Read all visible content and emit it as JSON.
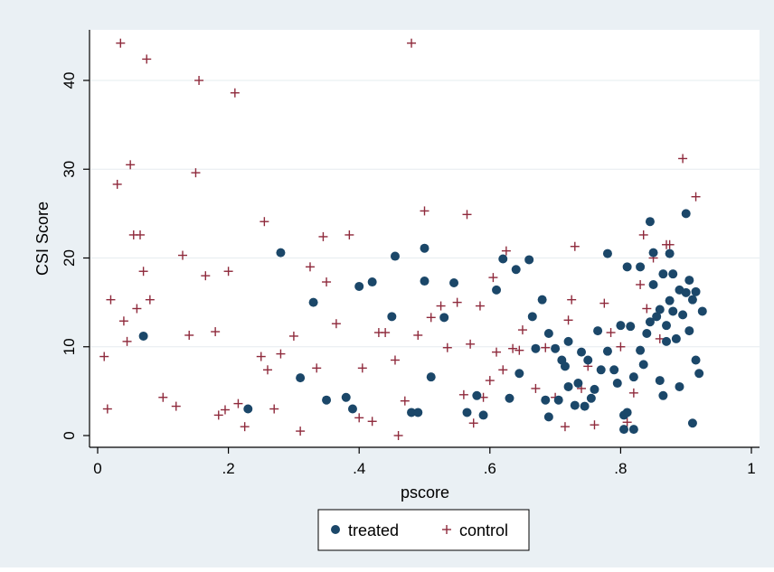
{
  "chart_data": {
    "type": "scatter",
    "xlabel": "pscore",
    "ylabel": "CSI Score",
    "xlim": [
      0,
      1
    ],
    "ylim": [
      0,
      45
    ],
    "x_ticks": [
      0,
      0.2,
      0.4,
      0.6,
      0.8,
      1
    ],
    "x_tick_labels": [
      "0",
      ".2",
      ".4",
      ".6",
      ".8",
      "1"
    ],
    "y_ticks": [
      0,
      10,
      20,
      30,
      40
    ],
    "y_tick_labels": [
      "0",
      "10",
      "20",
      "30",
      "40"
    ],
    "grid": "horizontal",
    "legend_position": "bottom-center",
    "colors": {
      "outer_background": "#eaf0f4",
      "plot_background": "#ffffff",
      "treated": "#1b4769",
      "control": "#8f2a3c",
      "gridline": "#e6ecef",
      "axis": "#000000"
    },
    "series": [
      {
        "name": "treated",
        "marker": "filled-circle",
        "points": [
          [
            0.07,
            11.2
          ],
          [
            0.23,
            3
          ],
          [
            0.28,
            20.6
          ],
          [
            0.31,
            6.5
          ],
          [
            0.33,
            15
          ],
          [
            0.35,
            4
          ],
          [
            0.38,
            4.3
          ],
          [
            0.39,
            3
          ],
          [
            0.4,
            16.8
          ],
          [
            0.42,
            17.3
          ],
          [
            0.45,
            13.4
          ],
          [
            0.455,
            20.2
          ],
          [
            0.48,
            2.6
          ],
          [
            0.49,
            2.6
          ],
          [
            0.5,
            21.1
          ],
          [
            0.5,
            17.4
          ],
          [
            0.51,
            6.6
          ],
          [
            0.53,
            13.3
          ],
          [
            0.545,
            17.2
          ],
          [
            0.565,
            2.6
          ],
          [
            0.58,
            4.5
          ],
          [
            0.59,
            2.3
          ],
          [
            0.61,
            16.4
          ],
          [
            0.62,
            19.9
          ],
          [
            0.63,
            4.2
          ],
          [
            0.64,
            18.7
          ],
          [
            0.645,
            7
          ],
          [
            0.66,
            19.8
          ],
          [
            0.665,
            13.4
          ],
          [
            0.67,
            9.8
          ],
          [
            0.68,
            15.3
          ],
          [
            0.685,
            4
          ],
          [
            0.69,
            2.1
          ],
          [
            0.69,
            11.5
          ],
          [
            0.7,
            9.8
          ],
          [
            0.705,
            4
          ],
          [
            0.71,
            8.5
          ],
          [
            0.715,
            7.8
          ],
          [
            0.72,
            10.6
          ],
          [
            0.72,
            5.5
          ],
          [
            0.73,
            3.4
          ],
          [
            0.735,
            5.9
          ],
          [
            0.74,
            9.4
          ],
          [
            0.745,
            3.3
          ],
          [
            0.75,
            8.5
          ],
          [
            0.755,
            4.2
          ],
          [
            0.76,
            5.2
          ],
          [
            0.765,
            11.8
          ],
          [
            0.77,
            7.4
          ],
          [
            0.78,
            9.5
          ],
          [
            0.78,
            20.5
          ],
          [
            0.79,
            7.4
          ],
          [
            0.795,
            5.9
          ],
          [
            0.8,
            12.4
          ],
          [
            0.805,
            2.3
          ],
          [
            0.805,
            0.7
          ],
          [
            0.81,
            19
          ],
          [
            0.81,
            2.6
          ],
          [
            0.815,
            12.3
          ],
          [
            0.82,
            0.7
          ],
          [
            0.82,
            6.6
          ],
          [
            0.83,
            9.6
          ],
          [
            0.83,
            19
          ],
          [
            0.835,
            8
          ],
          [
            0.84,
            11.5
          ],
          [
            0.845,
            24.1
          ],
          [
            0.845,
            12.8
          ],
          [
            0.85,
            17
          ],
          [
            0.85,
            20.6
          ],
          [
            0.855,
            13.4
          ],
          [
            0.86,
            14.2
          ],
          [
            0.86,
            6.2
          ],
          [
            0.865,
            4.5
          ],
          [
            0.865,
            18.2
          ],
          [
            0.87,
            12.4
          ],
          [
            0.87,
            10.6
          ],
          [
            0.875,
            20.5
          ],
          [
            0.875,
            15.2
          ],
          [
            0.88,
            18.2
          ],
          [
            0.88,
            14
          ],
          [
            0.885,
            10.9
          ],
          [
            0.89,
            16.4
          ],
          [
            0.89,
            5.5
          ],
          [
            0.895,
            13.6
          ],
          [
            0.9,
            25
          ],
          [
            0.9,
            16.1
          ],
          [
            0.905,
            17.5
          ],
          [
            0.905,
            11.8
          ],
          [
            0.91,
            1.4
          ],
          [
            0.91,
            15.3
          ],
          [
            0.915,
            8.5
          ],
          [
            0.915,
            16.2
          ],
          [
            0.92,
            7
          ],
          [
            0.925,
            14
          ]
        ]
      },
      {
        "name": "control",
        "marker": "plus",
        "points": [
          [
            0.01,
            8.9
          ],
          [
            0.015,
            3
          ],
          [
            0.02,
            15.3
          ],
          [
            0.03,
            28.3
          ],
          [
            0.035,
            44.2
          ],
          [
            0.04,
            12.9
          ],
          [
            0.045,
            10.6
          ],
          [
            0.05,
            30.5
          ],
          [
            0.055,
            22.6
          ],
          [
            0.06,
            14.3
          ],
          [
            0.065,
            22.6
          ],
          [
            0.07,
            18.5
          ],
          [
            0.075,
            42.4
          ],
          [
            0.08,
            15.3
          ],
          [
            0.1,
            4.3
          ],
          [
            0.12,
            3.3
          ],
          [
            0.13,
            20.3
          ],
          [
            0.14,
            11.3
          ],
          [
            0.15,
            29.6
          ],
          [
            0.155,
            40
          ],
          [
            0.165,
            18
          ],
          [
            0.18,
            11.7
          ],
          [
            0.185,
            2.3
          ],
          [
            0.195,
            2.9
          ],
          [
            0.2,
            18.5
          ],
          [
            0.21,
            38.6
          ],
          [
            0.215,
            3.6
          ],
          [
            0.225,
            1
          ],
          [
            0.25,
            8.9
          ],
          [
            0.255,
            24.1
          ],
          [
            0.26,
            7.4
          ],
          [
            0.27,
            3
          ],
          [
            0.28,
            9.2
          ],
          [
            0.3,
            11.2
          ],
          [
            0.31,
            0.5
          ],
          [
            0.325,
            19
          ],
          [
            0.335,
            7.6
          ],
          [
            0.345,
            22.4
          ],
          [
            0.35,
            17.3
          ],
          [
            0.365,
            12.6
          ],
          [
            0.385,
            22.6
          ],
          [
            0.4,
            2
          ],
          [
            0.405,
            7.6
          ],
          [
            0.42,
            1.6
          ],
          [
            0.43,
            11.6
          ],
          [
            0.44,
            11.6
          ],
          [
            0.455,
            8.5
          ],
          [
            0.46,
            0
          ],
          [
            0.47,
            3.9
          ],
          [
            0.48,
            44.2
          ],
          [
            0.49,
            11.3
          ],
          [
            0.5,
            25.3
          ],
          [
            0.51,
            13.3
          ],
          [
            0.525,
            14.6
          ],
          [
            0.535,
            9.9
          ],
          [
            0.55,
            15
          ],
          [
            0.56,
            4.6
          ],
          [
            0.565,
            24.9
          ],
          [
            0.57,
            10.3
          ],
          [
            0.575,
            1.4
          ],
          [
            0.585,
            14.6
          ],
          [
            0.59,
            4.3
          ],
          [
            0.6,
            6.2
          ],
          [
            0.605,
            17.8
          ],
          [
            0.61,
            9.4
          ],
          [
            0.62,
            7.4
          ],
          [
            0.625,
            20.8
          ],
          [
            0.635,
            9.8
          ],
          [
            0.645,
            9.6
          ],
          [
            0.65,
            11.9
          ],
          [
            0.67,
            5.3
          ],
          [
            0.685,
            9.9
          ],
          [
            0.7,
            4.3
          ],
          [
            0.715,
            1
          ],
          [
            0.72,
            13
          ],
          [
            0.725,
            15.3
          ],
          [
            0.73,
            21.3
          ],
          [
            0.74,
            5.3
          ],
          [
            0.75,
            7.8
          ],
          [
            0.76,
            1.2
          ],
          [
            0.775,
            14.9
          ],
          [
            0.785,
            11.6
          ],
          [
            0.8,
            10
          ],
          [
            0.81,
            1.5
          ],
          [
            0.82,
            4.8
          ],
          [
            0.83,
            17
          ],
          [
            0.835,
            22.6
          ],
          [
            0.84,
            14.3
          ],
          [
            0.85,
            20
          ],
          [
            0.86,
            10.9
          ],
          [
            0.87,
            21.5
          ],
          [
            0.875,
            21.5
          ],
          [
            0.895,
            31.2
          ],
          [
            0.915,
            26.9
          ]
        ]
      }
    ]
  }
}
